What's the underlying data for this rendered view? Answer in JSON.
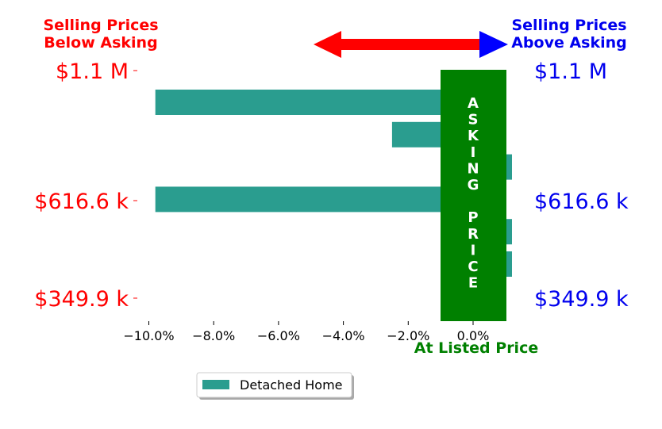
{
  "chart_data": {
    "type": "bar",
    "orientation": "horizontal",
    "title_left": [
      "Selling Prices",
      "Below Asking"
    ],
    "title_right": [
      "Selling Prices",
      "Above Asking"
    ],
    "left_labels": [
      "$1.1 M",
      "$616.6 k",
      "$349.9 k"
    ],
    "right_labels": [
      "$1.1 M",
      "$616.6 k",
      "$349.9 k"
    ],
    "xlabel": "At Listed Price",
    "asking_label": "ASKING PRICE",
    "x_ticks": [
      "−10.0%",
      "−8.0%",
      "−6.0%",
      "−4.0%",
      "−2.0%",
      "0.0%"
    ],
    "x_tick_values": [
      -10,
      -8,
      -6,
      -4,
      -2,
      0
    ],
    "xlim": [
      -10.3,
      1.2
    ],
    "series": [
      {
        "name": "Detached Home",
        "values": [
          -9.8,
          -2.5,
          1.2,
          -9.8,
          1.2,
          1.2
        ]
      }
    ],
    "legend_position": "bottom-center",
    "colors": {
      "bar": "#2a9d8f",
      "asking_band": "#008000",
      "below": "#ff0000",
      "above": "#0000ee",
      "arrow": "#ff0000",
      "arrow_head_right": "#0000ff",
      "xlabel": "#008000"
    }
  }
}
